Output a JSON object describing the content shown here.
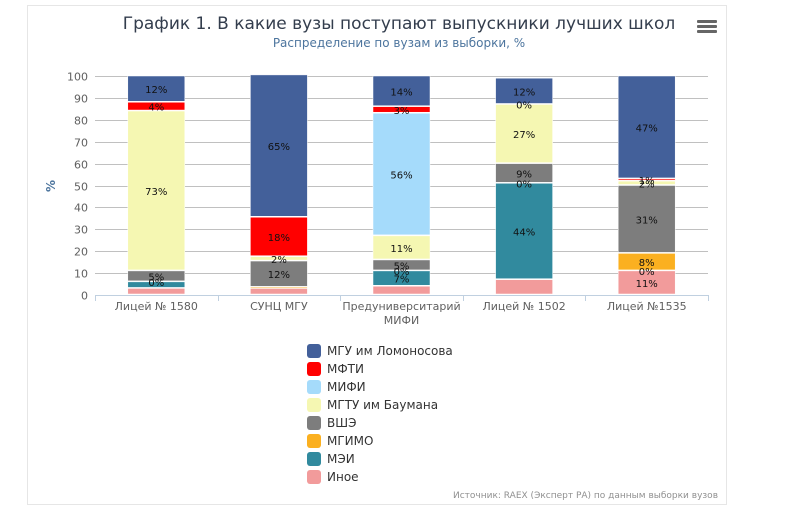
{
  "header": {
    "title": "График 1. В какие вузы поступают выпускники лучших школ",
    "subtitle": "Распределение по вузам из выборки, %",
    "menu_icon": "hamburger-menu-icon"
  },
  "footer": {
    "source": "Источник: RAEX (Эксперт РА) по данным выборки вузов"
  },
  "chart_data": {
    "type": "bar",
    "stacked": true,
    "title": "График 1. В какие вузы поступают выпускники лучших школ",
    "subtitle": "Распределение по вузам из выборки, %",
    "xlabel": "",
    "ylabel": "%",
    "ylim": [
      0,
      100
    ],
    "yticks": [
      0,
      10,
      20,
      30,
      40,
      50,
      60,
      70,
      80,
      90,
      100
    ],
    "grid": true,
    "legend_position": "bottom",
    "categories": [
      "Лицей № 1580",
      "СУНЦ МГУ",
      "Предуниверситарий МИФИ",
      "Лицей № 1502",
      "Лицей №1535"
    ],
    "category_label_lines": [
      [
        "Лицей № 1580"
      ],
      [
        "СУНЦ МГУ"
      ],
      [
        "Предуниверситарий",
        "МИФИ"
      ],
      [
        "Лицей № 1502"
      ],
      [
        "Лицей №1535"
      ]
    ],
    "series": [
      {
        "name": "Иное",
        "color": "#f29b9b",
        "values": [
          3,
          3,
          4,
          7,
          11
        ],
        "labels": [
          "",
          "",
          "",
          "",
          "11%"
        ]
      },
      {
        "name": "МЭИ",
        "color": "#318a9e",
        "values": [
          3,
          0,
          7,
          44,
          0
        ],
        "labels": [
          "",
          "",
          "7%",
          "44%",
          "0%"
        ]
      },
      {
        "name": "МГИМО",
        "color": "#fbb020",
        "values": [
          0,
          0.5,
          0,
          0,
          8
        ],
        "labels": [
          "0%",
          "",
          "0%",
          "0%",
          "8%"
        ]
      },
      {
        "name": "ВШЭ",
        "color": "#7d7d7d",
        "values": [
          5,
          12,
          5,
          9,
          31
        ],
        "labels": [
          "5%",
          "12%",
          "5%",
          "9%",
          "31%"
        ]
      },
      {
        "name": "МГТУ им Баумана",
        "color": "#f5f7b2",
        "values": [
          73,
          2,
          11,
          27,
          2
        ],
        "labels": [
          "73%",
          "2%",
          "11%",
          "27%",
          "2%"
        ]
      },
      {
        "name": "МИФИ",
        "color": "#a5dbfb",
        "values": [
          0,
          0,
          56,
          0,
          0
        ],
        "labels": [
          "",
          "",
          "56%",
          "0%",
          ""
        ]
      },
      {
        "name": "МФТИ",
        "color": "#ff0000",
        "values": [
          4,
          18,
          3,
          0,
          1
        ],
        "labels": [
          "4%",
          "18%",
          "3%",
          "",
          "1%"
        ]
      },
      {
        "name": "МГУ им Ломоносова",
        "color": "#43609a",
        "values": [
          12,
          65,
          14,
          12,
          47
        ],
        "labels": [
          "12%",
          "65%",
          "14%",
          "12%",
          "47%"
        ]
      }
    ],
    "legend_order": [
      "МГУ им Ломоносова",
      "МФТИ",
      "МИФИ",
      "МГТУ им Баумана",
      "ВШЭ",
      "МГИМО",
      "МЭИ",
      "Иное"
    ]
  }
}
